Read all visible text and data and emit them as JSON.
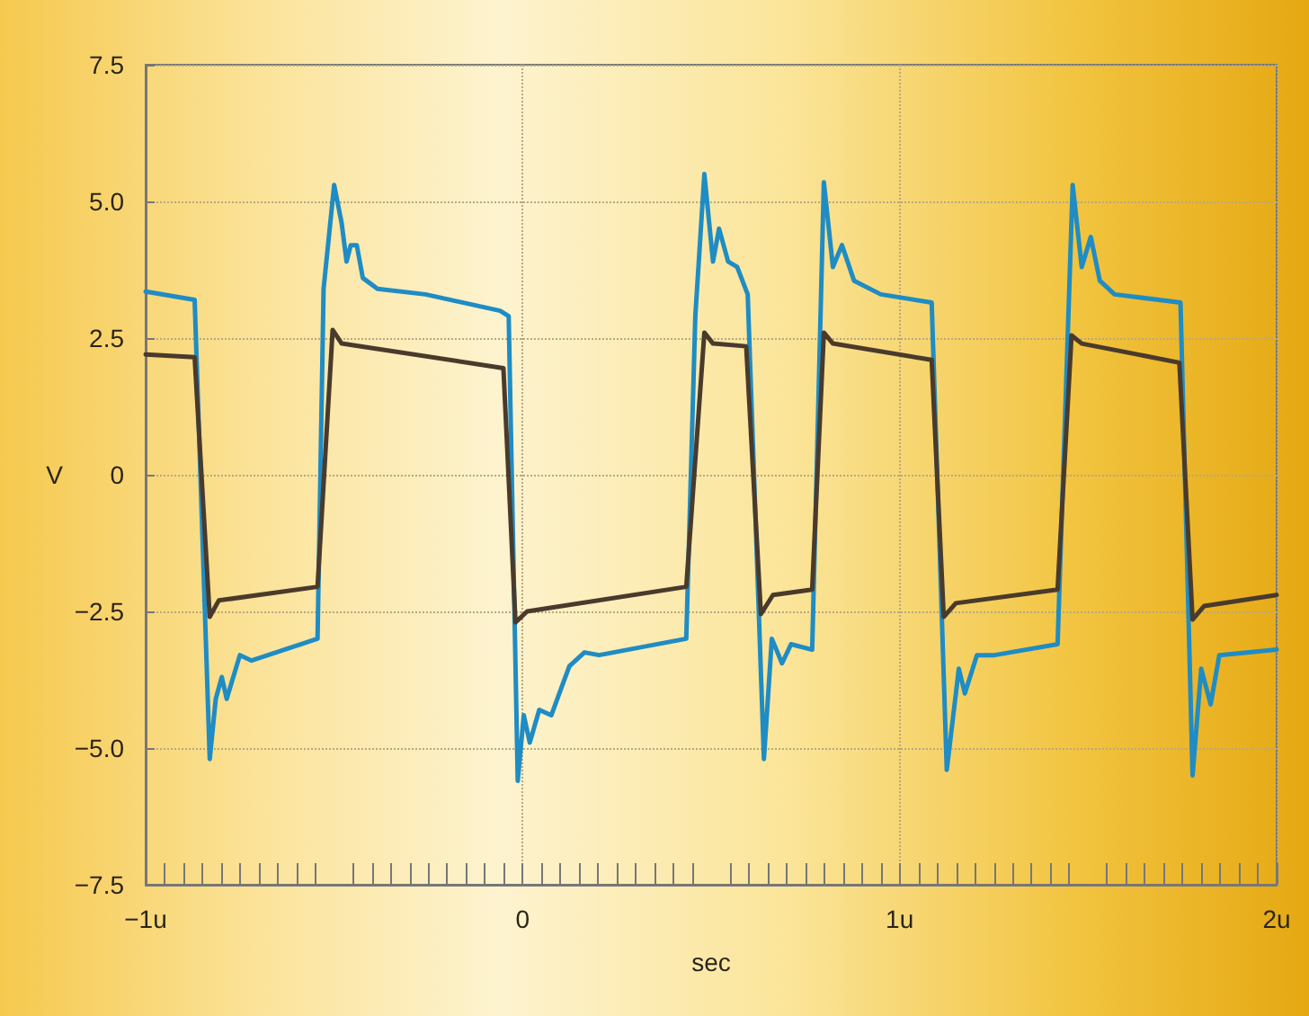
{
  "chart_data": {
    "type": "line",
    "xlabel": "sec",
    "ylabel": "V",
    "xlim": [
      -1,
      2
    ],
    "xticks": [
      {
        "value": -1,
        "label": "−1u"
      },
      0,
      {
        "value": 1,
        "label": "1u"
      },
      {
        "value": 2,
        "label": "2u"
      }
    ],
    "ylim": [
      -7.5,
      7.5
    ],
    "yticks": [
      {
        "value": -7.5,
        "label": "−7.5"
      },
      {
        "value": -5,
        "label": "−5.0"
      },
      {
        "value": -2.5,
        "label": "−2.5"
      },
      0,
      {
        "value": 2.5,
        "label": "2.5"
      },
      {
        "value": 5,
        "label": "5.0"
      },
      {
        "value": 7.5,
        "label": "7.5"
      }
    ],
    "grid": true,
    "marker": "none",
    "line_style": "solid",
    "series": [
      {
        "color": "#1f8cc4",
        "x": [
          -1.0,
          -0.87,
          -0.83,
          -0.814,
          -0.798,
          -0.785,
          -0.75,
          -0.719,
          -0.544,
          -0.528,
          -0.5,
          -0.48,
          -0.467,
          -0.456,
          -0.44,
          -0.424,
          -0.385,
          -0.258,
          -0.06,
          -0.037,
          -0.013,
          0.003,
          0.019,
          0.044,
          0.076,
          0.124,
          0.164,
          0.203,
          0.434,
          0.458,
          0.482,
          0.505,
          0.521,
          0.545,
          0.569,
          0.597,
          0.64,
          0.661,
          0.688,
          0.712,
          0.768,
          0.799,
          0.823,
          0.847,
          0.879,
          0.95,
          1.085,
          1.125,
          1.157,
          1.173,
          1.205,
          1.252,
          1.419,
          1.459,
          1.483,
          1.507,
          1.531,
          1.57,
          1.745,
          1.777,
          1.8,
          1.825,
          1.848,
          2.0
        ],
        "values": [
          3.35,
          3.2,
          -5.2,
          -4.1,
          -3.7,
          -4.1,
          -3.3,
          -3.4,
          -3.0,
          3.4,
          5.3,
          4.6,
          3.9,
          4.2,
          4.2,
          3.6,
          3.4,
          3.3,
          3.0,
          2.9,
          -5.6,
          -4.4,
          -4.9,
          -4.3,
          -4.4,
          -3.5,
          -3.25,
          -3.3,
          -3.0,
          2.9,
          5.5,
          3.9,
          4.5,
          3.9,
          3.8,
          3.3,
          -5.2,
          -3.0,
          -3.45,
          -3.1,
          -3.2,
          5.35,
          3.8,
          4.2,
          3.55,
          3.3,
          3.15,
          -5.4,
          -3.55,
          -4.0,
          -3.3,
          -3.3,
          -3.1,
          5.3,
          3.8,
          4.35,
          3.55,
          3.3,
          3.15,
          -5.5,
          -3.55,
          -4.2,
          -3.3,
          -3.2
        ]
      },
      {
        "color": "#4a3a2c",
        "x": [
          -1.0,
          -0.87,
          -0.83,
          -0.806,
          -0.544,
          -0.504,
          -0.48,
          -0.051,
          -0.019,
          0.012,
          0.434,
          0.482,
          0.505,
          0.593,
          0.632,
          0.664,
          0.768,
          0.799,
          0.823,
          1.085,
          1.117,
          1.149,
          1.419,
          1.456,
          1.483,
          1.742,
          1.777,
          1.808,
          2.0
        ],
        "values": [
          2.2,
          2.15,
          -2.6,
          -2.3,
          -2.05,
          2.65,
          2.4,
          1.95,
          -2.7,
          -2.5,
          -2.05,
          2.6,
          2.4,
          2.35,
          -2.55,
          -2.2,
          -2.1,
          2.6,
          2.4,
          2.1,
          -2.6,
          -2.35,
          -2.1,
          2.55,
          2.4,
          2.05,
          -2.65,
          -2.4,
          -2.2
        ]
      }
    ]
  }
}
